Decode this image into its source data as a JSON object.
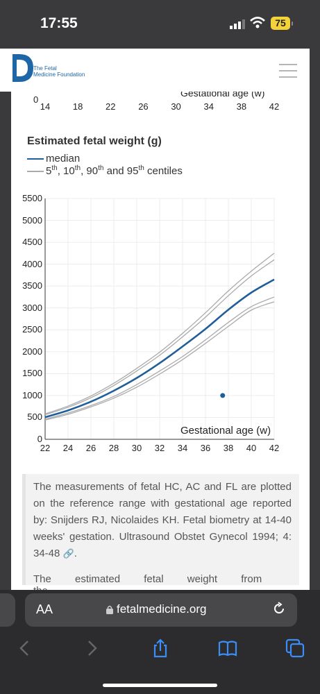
{
  "status": {
    "time": "17:55",
    "battery": "75"
  },
  "site": {
    "logo_line1": "The Fetal",
    "logo_line2": "Medicine Foundation"
  },
  "prev_chart": {
    "zero": "0",
    "ticks": [
      "14",
      "18",
      "22",
      "26",
      "30",
      "34",
      "38",
      "42"
    ],
    "axis_label": "Gestational age (w)"
  },
  "chart": {
    "title": "Estimated fetal weight (g)",
    "legend_median": "median",
    "legend_centiles": "5th, 10th, 90th and 95th centiles",
    "xlabel": "Gestational age (w)"
  },
  "chart_data": {
    "type": "line",
    "title": "Estimated fetal weight (g)",
    "xlabel": "Gestational age (w)",
    "ylabel": "",
    "xlim": [
      22,
      42
    ],
    "ylim": [
      0,
      5500
    ],
    "x_ticks": [
      22,
      24,
      26,
      28,
      30,
      32,
      34,
      36,
      38,
      40,
      42
    ],
    "y_ticks": [
      0,
      500,
      1000,
      1500,
      2000,
      2500,
      3000,
      3500,
      4000,
      4500,
      5000,
      5500
    ],
    "x": [
      22,
      24,
      26,
      28,
      30,
      32,
      34,
      36,
      38,
      40,
      42
    ],
    "series": [
      {
        "name": "median",
        "values": [
          505,
          660,
          860,
          1110,
          1400,
          1740,
          2120,
          2520,
          2960,
          3350,
          3650
        ]
      },
      {
        "name": "5th",
        "values": [
          440,
          570,
          740,
          940,
          1190,
          1490,
          1820,
          2190,
          2580,
          2950,
          3140
        ]
      },
      {
        "name": "10th",
        "values": [
          460,
          600,
          770,
          980,
          1250,
          1560,
          1890,
          2270,
          2670,
          3030,
          3250
        ]
      },
      {
        "name": "90th",
        "values": [
          560,
          730,
          950,
          1230,
          1560,
          1920,
          2340,
          2790,
          3280,
          3730,
          4100
        ]
      },
      {
        "name": "95th",
        "values": [
          580,
          760,
          990,
          1280,
          1620,
          1990,
          2420,
          2890,
          3390,
          3840,
          4250
        ]
      }
    ],
    "points": [
      {
        "x": 37.5,
        "y": 1000
      }
    ],
    "colors": {
      "median": "#1f5e99",
      "centile": "#aaaaaa",
      "point": "#1f5e99"
    },
    "grid": true
  },
  "reference": {
    "text": "The measurements of fetal HC, AC and FL are plotted on the reference range with gestational age reported by: Snijders RJ, Nicolaides KH. Fetal biometry at 14-40 weeks' gestation. Ultrasound Obstet Gynecol 1994; 4: 34-48",
    "next_line": "The estimated fetal weight from the"
  },
  "browser": {
    "aa": "AA",
    "url": "fetalmedicine.org"
  }
}
